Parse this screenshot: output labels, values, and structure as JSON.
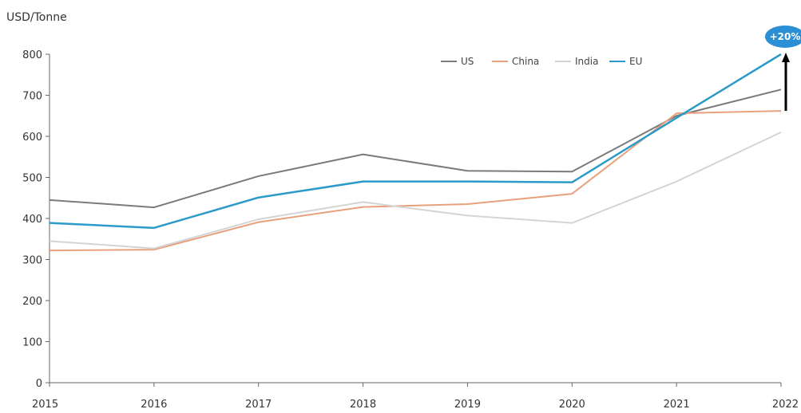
{
  "chart_data": {
    "type": "line",
    "ylabel": "USD/Tonne",
    "ylim": [
      0,
      800
    ],
    "yticks": [
      0,
      100,
      200,
      300,
      400,
      500,
      600,
      700,
      800
    ],
    "categories": [
      "2015",
      "2016",
      "2017",
      "2018",
      "2019",
      "2020",
      "2021",
      "2022"
    ],
    "series": [
      {
        "name": "US",
        "color": "#7a7a7a",
        "values": [
          445,
          427,
          503,
          556,
          516,
          514,
          650,
          714
        ]
      },
      {
        "name": "China",
        "color": "#e8a07c",
        "values": [
          322,
          324,
          391,
          428,
          435,
          460,
          656,
          662
        ]
      },
      {
        "name": "India",
        "color": "#d4d4d4",
        "values": [
          345,
          327,
          398,
          440,
          407,
          389,
          490,
          610
        ]
      },
      {
        "name": "EU",
        "color": "#2b9ac8",
        "values": [
          389,
          377,
          451,
          490,
          490,
          488,
          645,
          800
        ]
      }
    ],
    "legend_position": "top-right",
    "grid": false,
    "annotation": {
      "text": "+20%",
      "color": "#2b8fd6",
      "from": 662,
      "to": 800,
      "at": "2022"
    }
  }
}
